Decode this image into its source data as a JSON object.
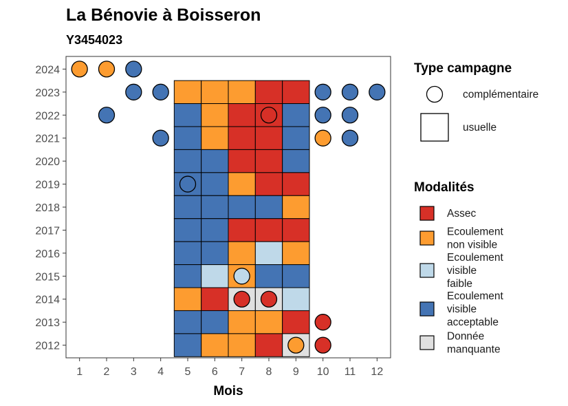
{
  "chart_data": {
    "type": "heatmap",
    "title": "La Bénovie à Boisseron",
    "subtitle": "Y3454023",
    "xlabel": "Mois",
    "ylabel": "",
    "x_ticks": [
      1,
      2,
      3,
      4,
      5,
      6,
      7,
      8,
      9,
      10,
      11,
      12
    ],
    "y_ticks": [
      2024,
      2023,
      2022,
      2021,
      2020,
      2019,
      2018,
      2017,
      2016,
      2015,
      2014,
      2013,
      2012
    ],
    "legend_type": {
      "title": "Type campagne",
      "items": [
        {
          "key": "complementaire",
          "label": "complémentaire",
          "shape": "circle"
        },
        {
          "key": "usuelle",
          "label": "usuelle",
          "shape": "square"
        }
      ]
    },
    "legend_modalites": {
      "title": "Modalités",
      "items": [
        {
          "key": "A",
          "lines": [
            "Assec"
          ],
          "color": "#d73027"
        },
        {
          "key": "N",
          "lines": [
            "Ecoulement",
            "non visible"
          ],
          "color": "#fd9c30"
        },
        {
          "key": "F",
          "lines": [
            "Ecoulement",
            "visible",
            "faible"
          ],
          "color": "#bfd9e9"
        },
        {
          "key": "V",
          "lines": [
            "Ecoulement",
            "visible",
            "acceptable"
          ],
          "color": "#4474b4"
        },
        {
          "key": "M",
          "lines": [
            "Donnée",
            "manquante"
          ],
          "color": "#e0e0e0"
        }
      ]
    },
    "usuelle": [
      {
        "year": 2023,
        "months": [
          5,
          6,
          7,
          8,
          9
        ],
        "values": [
          "N",
          "N",
          "N",
          "A",
          "A"
        ]
      },
      {
        "year": 2022,
        "months": [
          5,
          6,
          7,
          8,
          9
        ],
        "values": [
          "V",
          "N",
          "A",
          "A",
          "V"
        ]
      },
      {
        "year": 2021,
        "months": [
          5,
          6,
          7,
          8,
          9
        ],
        "values": [
          "V",
          "N",
          "A",
          "A",
          "V"
        ]
      },
      {
        "year": 2020,
        "months": [
          5,
          6,
          7,
          8,
          9
        ],
        "values": [
          "V",
          "V",
          "A",
          "A",
          "V"
        ]
      },
      {
        "year": 2019,
        "months": [
          5,
          6,
          7,
          8,
          9
        ],
        "values": [
          "V",
          "V",
          "N",
          "A",
          "A"
        ]
      },
      {
        "year": 2018,
        "months": [
          5,
          6,
          7,
          8,
          9
        ],
        "values": [
          "V",
          "V",
          "V",
          "V",
          "N"
        ]
      },
      {
        "year": 2017,
        "months": [
          5,
          6,
          7,
          8,
          9
        ],
        "values": [
          "V",
          "V",
          "A",
          "A",
          "A"
        ]
      },
      {
        "year": 2016,
        "months": [
          5,
          6,
          7,
          8,
          9
        ],
        "values": [
          "V",
          "V",
          "N",
          "F",
          "N"
        ]
      },
      {
        "year": 2015,
        "months": [
          5,
          6,
          7,
          8,
          9
        ],
        "values": [
          "V",
          "F",
          "N",
          "V",
          "V"
        ]
      },
      {
        "year": 2014,
        "months": [
          5,
          6,
          7,
          8,
          9
        ],
        "values": [
          "N",
          "A",
          "M",
          "M",
          "F"
        ]
      },
      {
        "year": 2013,
        "months": [
          5,
          6,
          7,
          8,
          9
        ],
        "values": [
          "V",
          "V",
          "N",
          "N",
          "A"
        ]
      },
      {
        "year": 2012,
        "months": [
          5,
          6,
          7,
          8,
          9
        ],
        "values": [
          "V",
          "N",
          "N",
          "A",
          "M"
        ]
      }
    ],
    "complementaire": [
      {
        "year": 2024,
        "month": 1,
        "value": "N"
      },
      {
        "year": 2024,
        "month": 2,
        "value": "N"
      },
      {
        "year": 2024,
        "month": 3,
        "value": "V"
      },
      {
        "year": 2023,
        "month": 3,
        "value": "V"
      },
      {
        "year": 2023,
        "month": 4,
        "value": "V"
      },
      {
        "year": 2023,
        "month": 10,
        "value": "V"
      },
      {
        "year": 2023,
        "month": 11,
        "value": "V"
      },
      {
        "year": 2023,
        "month": 12,
        "value": "V"
      },
      {
        "year": 2022,
        "month": 2,
        "value": "V"
      },
      {
        "year": 2022,
        "month": 8,
        "value": "A"
      },
      {
        "year": 2022,
        "month": 10,
        "value": "V"
      },
      {
        "year": 2022,
        "month": 11,
        "value": "V"
      },
      {
        "year": 2021,
        "month": 4,
        "value": "V"
      },
      {
        "year": 2021,
        "month": 10,
        "value": "N"
      },
      {
        "year": 2021,
        "month": 11,
        "value": "V"
      },
      {
        "year": 2019,
        "month": 5,
        "value": "V"
      },
      {
        "year": 2015,
        "month": 7,
        "value": "F"
      },
      {
        "year": 2014,
        "month": 7,
        "value": "A"
      },
      {
        "year": 2014,
        "month": 8,
        "value": "A"
      },
      {
        "year": 2013,
        "month": 10,
        "value": "A"
      },
      {
        "year": 2012,
        "month": 9,
        "value": "N"
      },
      {
        "year": 2012,
        "month": 10,
        "value": "A"
      }
    ]
  }
}
